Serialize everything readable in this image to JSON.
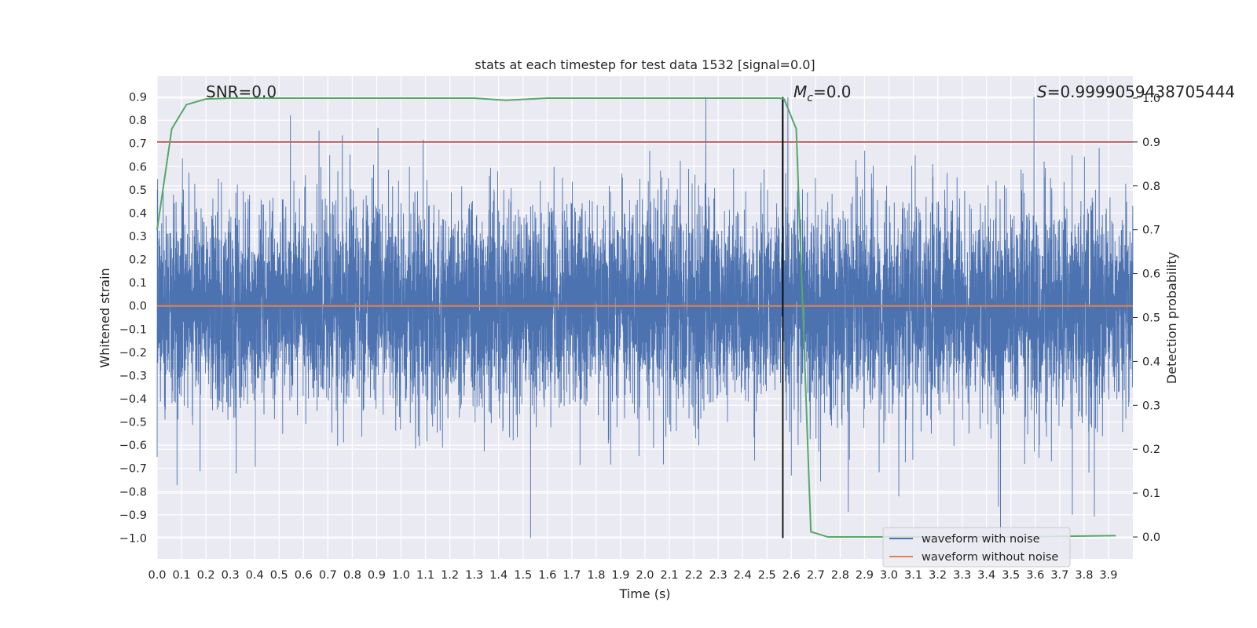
{
  "chart_data": {
    "type": "line",
    "title": "stats at each timestep for test data 1532 [signal=0.0]",
    "xlabel": "Time (s)",
    "ylabel": "Whitened strain",
    "y2label": "Detection probability",
    "xlim": [
      0.0,
      4.0
    ],
    "ylim": [
      -1.09,
      0.99
    ],
    "y2lim": [
      -0.05,
      1.05
    ],
    "xticks": [
      "0.0",
      "0.1",
      "0.2",
      "0.3",
      "0.4",
      "0.5",
      "0.6",
      "0.7",
      "0.8",
      "0.9",
      "1.0",
      "1.1",
      "1.2",
      "1.3",
      "1.4",
      "1.5",
      "1.6",
      "1.7",
      "1.8",
      "1.9",
      "2.0",
      "2.1",
      "2.2",
      "2.3",
      "2.4",
      "2.5",
      "2.6",
      "2.7",
      "2.8",
      "2.9",
      "3.0",
      "3.1",
      "3.2",
      "3.3",
      "3.4",
      "3.5",
      "3.6",
      "3.7",
      "3.8",
      "3.9"
    ],
    "yticks": [
      "0.9",
      "0.8",
      "0.7",
      "0.6",
      "0.5",
      "0.4",
      "0.3",
      "0.2",
      "0.1",
      "0.0",
      "−0.1",
      "−0.2",
      "−0.3",
      "−0.4",
      "−0.5",
      "−0.6",
      "−0.7",
      "−0.8",
      "−0.9",
      "−1.0"
    ],
    "y2ticks": [
      "1.0",
      "0.9",
      "0.8",
      "0.7",
      "0.6",
      "0.5",
      "0.4",
      "0.3",
      "0.2",
      "0.1",
      "0.0"
    ],
    "annotations": {
      "snr": "SNR=0.0",
      "mc_symbol": "M",
      "mc_sub": "c",
      "mc_value": "=0.0",
      "s_symbol": "S",
      "s_value": "=0.9999059438705444"
    },
    "series": [
      {
        "name": "waveform with noise",
        "color": "#4c72b0",
        "axis": "left",
        "kind": "noisy-strain",
        "n_samples": 8192,
        "range": [
          -1.0,
          0.9
        ]
      },
      {
        "name": "waveform without noise",
        "color": "#dd8452",
        "axis": "left",
        "values": [
          0.0,
          0.0
        ]
      },
      {
        "name": "detection probability",
        "color": "#55a868",
        "axis": "right",
        "x": [
          0.0,
          0.06,
          0.12,
          0.2,
          0.3,
          0.6,
          1.0,
          1.3,
          1.43,
          1.6,
          2.0,
          2.3,
          2.55,
          2.57,
          2.62,
          2.68,
          2.75,
          3.0,
          3.5,
          3.93
        ],
        "values": [
          0.7,
          0.93,
          0.985,
          0.998,
          1.0,
          1.0,
          1.0,
          1.0,
          0.995,
          1.0,
          1.0,
          1.0,
          1.0,
          0.998,
          0.93,
          0.012,
          0.0,
          0.0,
          0.0,
          0.003
        ]
      }
    ],
    "threshold": {
      "value": 0.9,
      "axis": "right",
      "color": "#c44e52"
    },
    "vline": {
      "x": 2.565,
      "color": "#000000",
      "ymin": -1.0,
      "ymax": 0.9
    },
    "legend": {
      "placement": "lower-right",
      "entries": [
        "waveform with noise",
        "waveform without noise"
      ]
    },
    "grid": true,
    "colors": {
      "background": "#eaeaf2",
      "grid": "#ffffff"
    }
  }
}
